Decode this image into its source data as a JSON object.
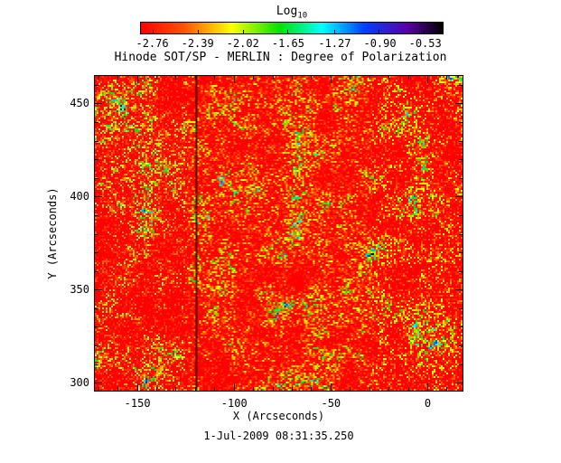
{
  "title": "Hinode SOT/SP - MERLIN : Degree of Polarization",
  "footer": "1-Jul-2009 08:31:35.250",
  "colorbar": {
    "label_main": "Log",
    "label_sub": "10",
    "tick_labels": [
      "-2.76",
      "-2.39",
      "-2.02",
      "-1.65",
      "-1.27",
      "-0.90",
      "-0.53"
    ]
  },
  "x_axis": {
    "label": "X (Arcseconds)",
    "tick_labels": [
      "-150",
      "-100",
      "-50",
      "0"
    ]
  },
  "y_axis": {
    "label": "Y (Arcseconds)",
    "tick_labels": [
      "300",
      "350",
      "400",
      "450"
    ]
  },
  "accent_colors": {
    "background": "#ffffff",
    "frame": "#000000",
    "base_field_red": "#ff2200"
  },
  "chart_data": {
    "type": "heatmap",
    "title": "Hinode SOT/SP - MERLIN : Degree of Polarization",
    "xlabel": "X (Arcseconds)",
    "ylabel": "Y (Arcseconds)",
    "xlim": [
      -172,
      18
    ],
    "ylim": [
      296,
      465
    ],
    "x_ticks": [
      -150,
      -100,
      -50,
      0
    ],
    "y_ticks": [
      300,
      350,
      400,
      450
    ],
    "x_minor_step": 10,
    "y_minor_step": 10,
    "grid": false,
    "colorbar": {
      "label": "Log10",
      "ticks": [
        -2.76,
        -2.39,
        -2.02,
        -1.65,
        -1.27,
        -0.9,
        -0.53
      ],
      "value_range": [
        -2.86,
        -0.38
      ],
      "position": "top"
    },
    "colormap": [
      {
        "t": 0.0,
        "rgb": [
          255,
          0,
          0
        ]
      },
      {
        "t": 0.14,
        "rgb": [
          255,
          80,
          0
        ]
      },
      {
        "t": 0.3,
        "rgb": [
          255,
          255,
          0
        ]
      },
      {
        "t": 0.46,
        "rgb": [
          0,
          225,
          0
        ]
      },
      {
        "t": 0.6,
        "rgb": [
          0,
          255,
          255
        ]
      },
      {
        "t": 0.74,
        "rgb": [
          0,
          64,
          255
        ]
      },
      {
        "t": 0.88,
        "rgb": [
          90,
          0,
          170
        ]
      },
      {
        "t": 1.0,
        "rgb": [
          0,
          0,
          0
        ]
      }
    ],
    "field": {
      "description": "Quiet-Sun log10 degree-of-polarization map: predominantly low values near -2.7 (red) with fine granular speckle; patches of enhanced polarization around -1.8 to -0.9 (green/cyan/blue) clustered along magnetic network lanes; thin dark vertical artifact column near x = -120 arcsec.",
      "base_value": -2.7,
      "enhanced_value_range": [
        -1.8,
        -0.9
      ],
      "artifact_column_x": -120,
      "noise_seed": 20090701
    }
  }
}
